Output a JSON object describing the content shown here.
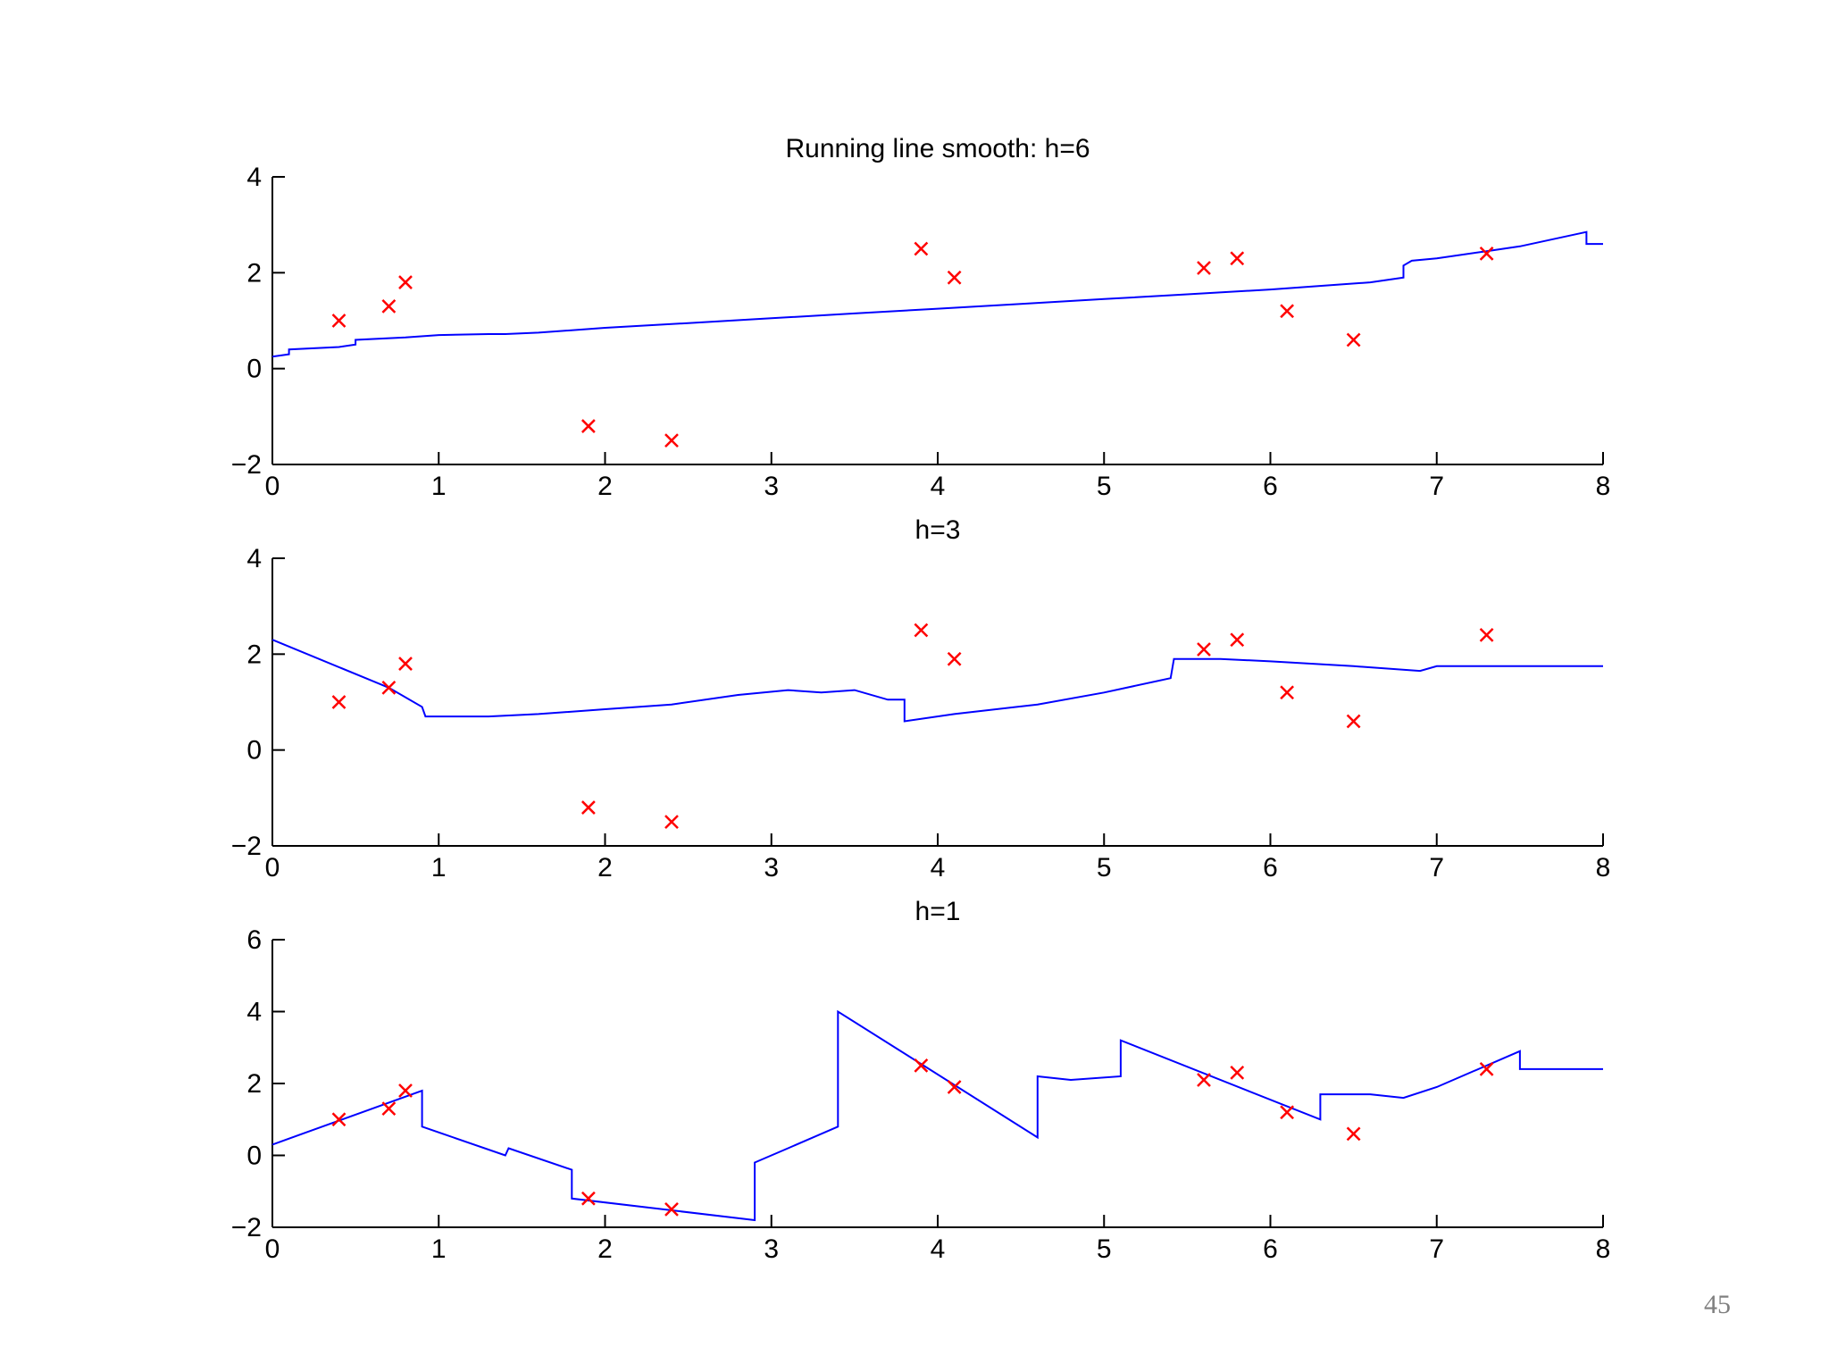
{
  "page_number": "45",
  "colors": {
    "line": "#0000ff",
    "marker": "#ff0000",
    "axis": "#000000"
  },
  "chart_data": [
    {
      "type": "line",
      "title": "Running line smooth: h=6",
      "xlabel": "",
      "ylabel": "",
      "xlim": [
        0,
        8
      ],
      "ylim": [
        -2,
        4
      ],
      "xticks": [
        0,
        1,
        2,
        3,
        4,
        5,
        6,
        7,
        8
      ],
      "yticks": [
        -2,
        0,
        2,
        4
      ],
      "grid": false,
      "series": [
        {
          "type": "line",
          "x": [
            0,
            0.1,
            0.1,
            0.4,
            0.5,
            0.5,
            0.8,
            1.0,
            1.3,
            1.4,
            1.6,
            2.0,
            2.5,
            3.0,
            3.5,
            4.0,
            4.5,
            5.0,
            5.5,
            6.0,
            6.4,
            6.6,
            6.8,
            6.8,
            6.85,
            7.0,
            7.3,
            7.5,
            7.9,
            7.9,
            8.0
          ],
          "y": [
            0.25,
            0.3,
            0.4,
            0.45,
            0.5,
            0.6,
            0.65,
            0.7,
            0.72,
            0.72,
            0.75,
            0.85,
            0.95,
            1.05,
            1.15,
            1.25,
            1.35,
            1.45,
            1.55,
            1.65,
            1.75,
            1.8,
            1.9,
            2.15,
            2.25,
            2.3,
            2.45,
            2.55,
            2.85,
            2.6,
            2.6
          ]
        },
        {
          "type": "scatter",
          "marker": "x",
          "x": [
            0.4,
            0.7,
            0.8,
            1.9,
            2.4,
            3.9,
            4.1,
            5.6,
            5.8,
            6.1,
            6.5,
            7.3
          ],
          "y": [
            1.0,
            1.3,
            1.8,
            -1.2,
            -1.5,
            2.5,
            1.9,
            2.1,
            2.3,
            1.2,
            0.6,
            2.4
          ]
        }
      ]
    },
    {
      "type": "line",
      "title": "h=3",
      "xlabel": "",
      "ylabel": "",
      "xlim": [
        0,
        8
      ],
      "ylim": [
        -2,
        4
      ],
      "xticks": [
        0,
        1,
        2,
        3,
        4,
        5,
        6,
        7,
        8
      ],
      "yticks": [
        -2,
        0,
        2,
        4
      ],
      "grid": false,
      "series": [
        {
          "type": "line",
          "x": [
            0,
            0.7,
            0.9,
            0.92,
            1.3,
            1.6,
            2.0,
            2.4,
            2.8,
            3.1,
            3.3,
            3.5,
            3.7,
            3.8,
            3.8,
            4.1,
            4.6,
            5.0,
            5.4,
            5.42,
            5.7,
            6.0,
            6.5,
            6.9,
            7.0,
            8.0
          ],
          "y": [
            2.3,
            1.3,
            0.9,
            0.7,
            0.7,
            0.75,
            0.85,
            0.95,
            1.15,
            1.25,
            1.2,
            1.25,
            1.05,
            1.05,
            0.6,
            0.75,
            0.95,
            1.2,
            1.5,
            1.9,
            1.9,
            1.85,
            1.75,
            1.65,
            1.75,
            1.75
          ]
        },
        {
          "type": "scatter",
          "marker": "x",
          "x": [
            0.4,
            0.7,
            0.8,
            1.9,
            2.4,
            3.9,
            4.1,
            5.6,
            5.8,
            6.1,
            6.5,
            7.3
          ],
          "y": [
            1.0,
            1.3,
            1.8,
            -1.2,
            -1.5,
            2.5,
            1.9,
            2.1,
            2.3,
            1.2,
            0.6,
            2.4
          ]
        }
      ]
    },
    {
      "type": "line",
      "title": "h=1",
      "xlabel": "",
      "ylabel": "",
      "xlim": [
        0,
        8
      ],
      "ylim": [
        -2,
        6
      ],
      "xticks": [
        0,
        1,
        2,
        3,
        4,
        5,
        6,
        7,
        8
      ],
      "yticks": [
        -2,
        0,
        2,
        4,
        6
      ],
      "grid": false,
      "series": [
        {
          "type": "line",
          "x": [
            0,
            0.9,
            0.9,
            1.4,
            1.42,
            1.8,
            1.8,
            2.9,
            2.9,
            3.1,
            3.4,
            3.4,
            4.6,
            4.6,
            4.8,
            5.1,
            5.1,
            6.3,
            6.3,
            6.6,
            6.8,
            7.0,
            7.5,
            7.5,
            8.0
          ],
          "y": [
            0.3,
            1.8,
            0.8,
            0.0,
            0.2,
            -0.4,
            -1.2,
            -1.8,
            -0.2,
            0.2,
            0.8,
            4.0,
            0.5,
            2.2,
            2.1,
            2.2,
            3.2,
            1.0,
            1.7,
            1.7,
            1.6,
            1.9,
            2.9,
            2.4,
            2.4
          ]
        },
        {
          "type": "scatter",
          "marker": "x",
          "x": [
            0.4,
            0.7,
            0.8,
            1.9,
            2.4,
            3.9,
            4.1,
            5.6,
            5.8,
            6.1,
            6.5,
            7.3
          ],
          "y": [
            1.0,
            1.3,
            1.8,
            -1.2,
            -1.5,
            2.5,
            1.9,
            2.1,
            2.3,
            1.2,
            0.6,
            2.4
          ]
        }
      ]
    }
  ]
}
